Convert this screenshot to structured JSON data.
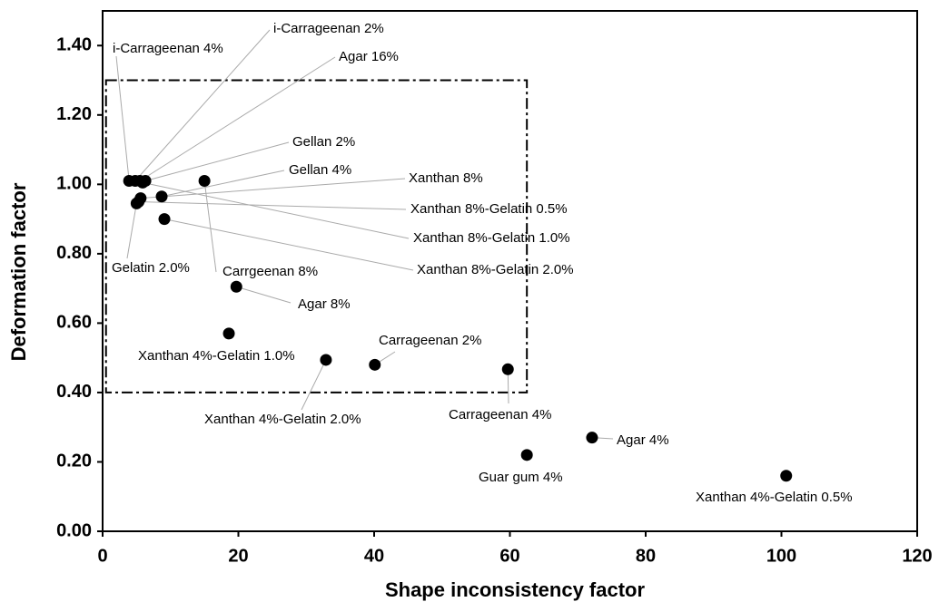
{
  "chart_data": {
    "type": "scatter",
    "xlabel": "Shape inconsistency factor",
    "ylabel": "Deformation factor",
    "x": [
      3.9,
      4.8,
      5.5,
      6.3,
      5.9,
      15.0,
      8.7,
      5.6,
      5.3,
      5.0,
      9.1,
      19.7,
      18.6,
      32.9,
      40.1,
      59.7,
      72.1,
      62.5,
      100.7
    ],
    "y": [
      1.01,
      1.01,
      1.01,
      1.01,
      1.005,
      1.01,
      0.965,
      0.96,
      0.95,
      0.945,
      0.9,
      0.705,
      0.57,
      0.494,
      0.48,
      0.467,
      0.27,
      0.22,
      0.16
    ],
    "labels": [
      "i-Carrageenan 4%",
      "i-Carrageenan 2%",
      "Agar 16%",
      "Gellan 2%",
      "Xanthan 8%-Gelatin 1.0%",
      "Carrgeenan 8%",
      "Gellan 4%",
      "Xanthan 8%",
      "Xanthan 8%-Gelatin 0.5%",
      "Gelatin 2.0%",
      "Xanthan 8%-Gelatin 2.0%",
      "Agar 8%",
      "Xanthan 4%-Gelatin 1.0%",
      "Xanthan 4%-Gelatin 2.0%",
      "Carrageenan 2%",
      "Carrageenan 4%",
      "Agar 4%",
      "Guar gum 4%",
      "Xanthan 4%-Gelatin 0.5%"
    ],
    "color": "#000000",
    "region": {
      "xlim": [
        0.5,
        62.5
      ],
      "ylim": [
        0.4,
        1.3
      ]
    },
    "xlim": [
      0,
      120
    ],
    "xticks": [
      0,
      20,
      40,
      60,
      80,
      100,
      120
    ],
    "ylim": [
      0,
      1.5
    ],
    "yticks": [
      {
        "value": 0,
        "label": "0.00"
      },
      {
        "value": 0.2,
        "label": "0.20"
      },
      {
        "value": 0.4,
        "label": "0.40"
      },
      {
        "value": 0.6,
        "label": "0.60"
      },
      {
        "value": 0.8,
        "label": "0.80"
      },
      {
        "value": 1.0,
        "label": "1.00"
      },
      {
        "value": 1.2,
        "label": "1.20"
      },
      {
        "value": 1.4,
        "label": "1.40"
      }
    ],
    "grid": false
  }
}
